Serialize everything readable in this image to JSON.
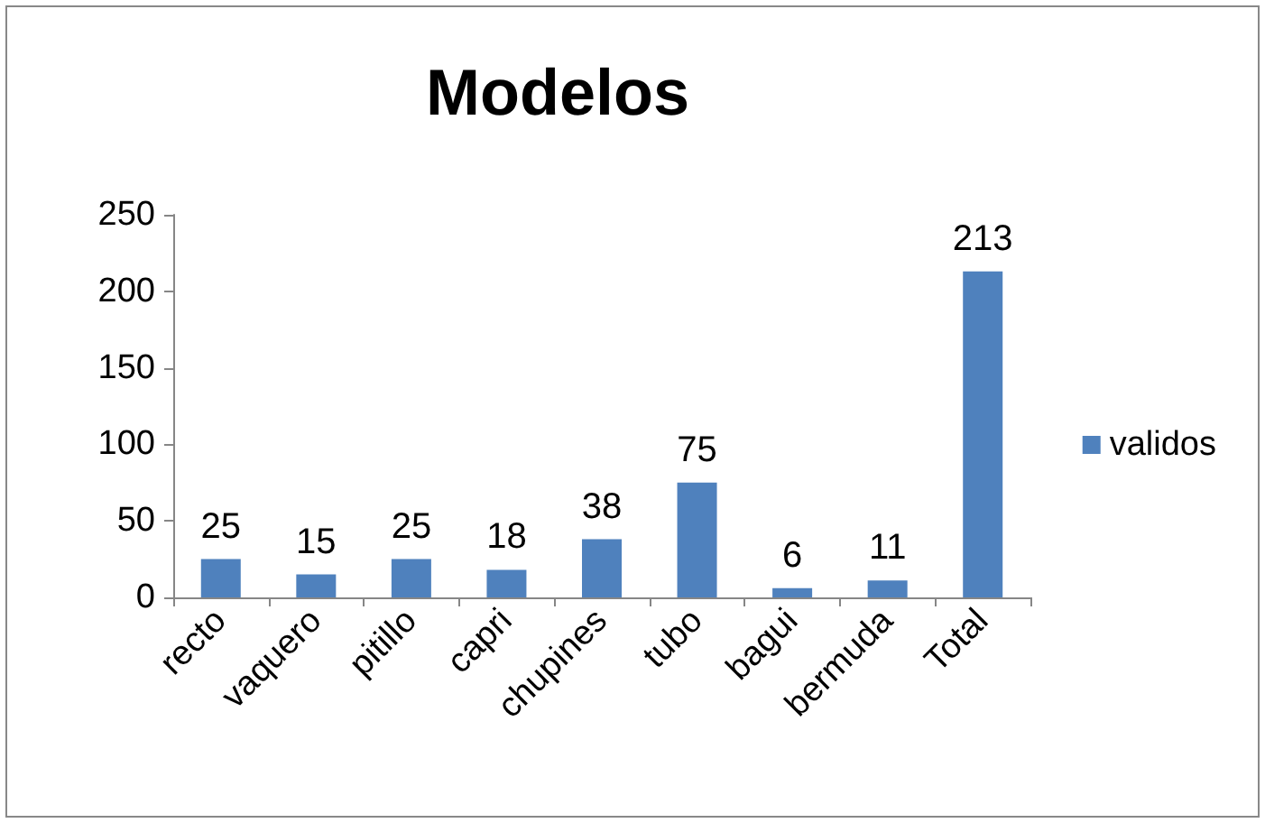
{
  "chart_data": {
    "type": "bar",
    "title": "Modelos",
    "categories": [
      "recto",
      "vaquero",
      "pitillo",
      "capri",
      "chupines",
      "tubo",
      "bagui",
      "bermuda",
      "Total"
    ],
    "series": [
      {
        "name": "validos",
        "color": "#4f81bd",
        "values": [
          25,
          15,
          25,
          18,
          38,
          75,
          6,
          11,
          213
        ]
      }
    ],
    "ylim": [
      0,
      250
    ],
    "yticks": [
      0,
      50,
      100,
      150,
      200,
      250
    ],
    "grid": false,
    "legend": "right",
    "data_labels": true
  }
}
